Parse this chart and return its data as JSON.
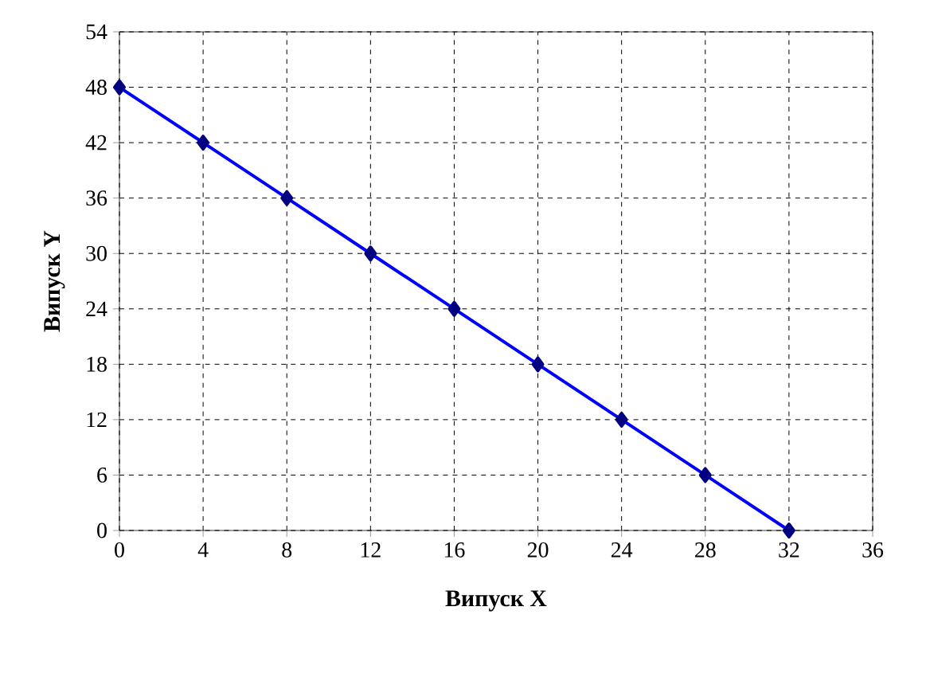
{
  "chart_data": {
    "type": "line",
    "xlabel": "Випуск X",
    "ylabel": "Випуск Y",
    "x": [
      0,
      4,
      8,
      12,
      16,
      20,
      24,
      28,
      32
    ],
    "series": [
      {
        "color": "#0000ff",
        "values": [
          48,
          42,
          36,
          30,
          24,
          18,
          12,
          6,
          0
        ]
      }
    ],
    "xlim": [
      0,
      36
    ],
    "ylim": [
      0,
      54
    ],
    "xticks": [
      0,
      4,
      8,
      12,
      16,
      20,
      24,
      28,
      32,
      36
    ],
    "yticks": [
      0,
      6,
      12,
      18,
      24,
      30,
      36,
      42,
      48,
      54
    ],
    "grid": true,
    "marker": "diamond",
    "line_style": "solid"
  }
}
